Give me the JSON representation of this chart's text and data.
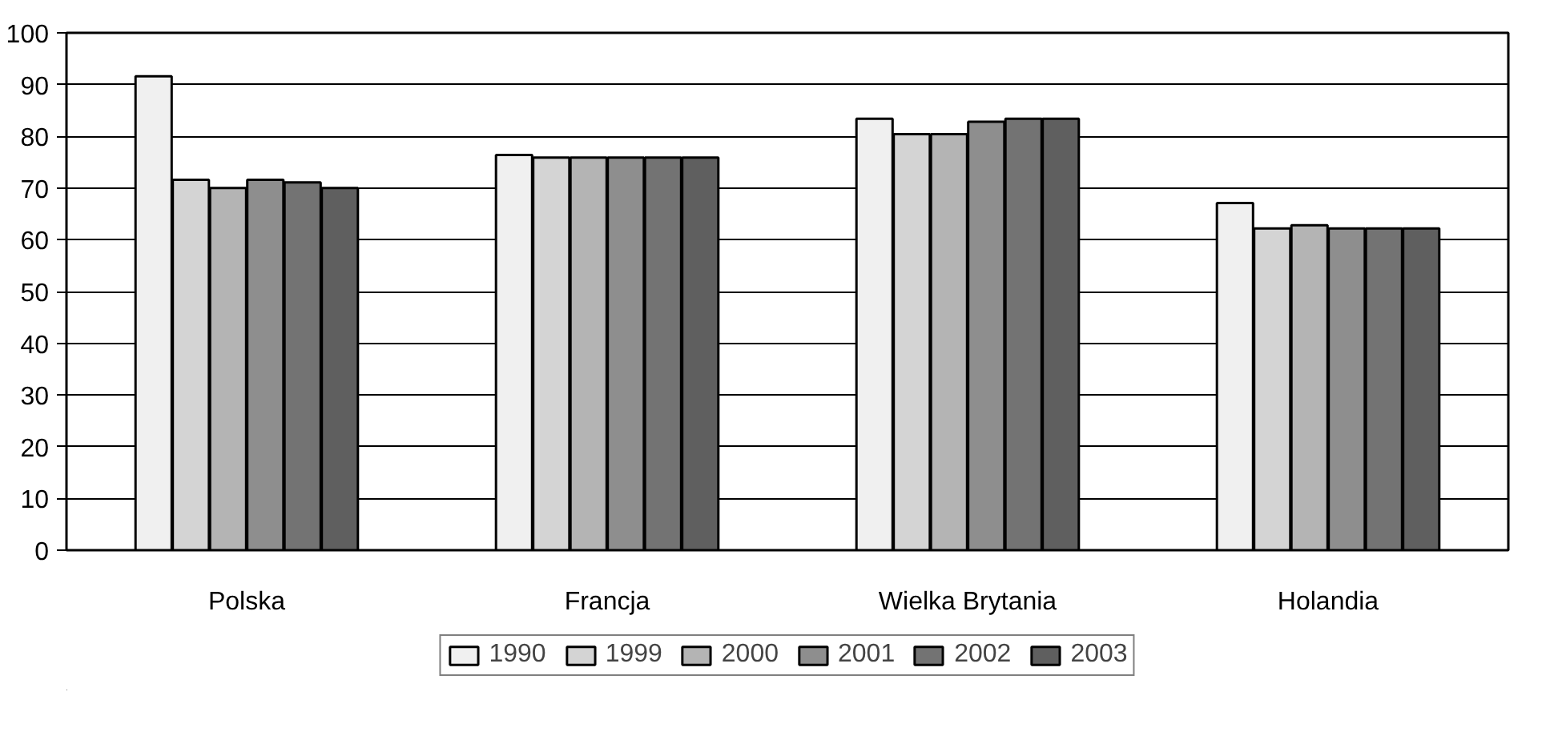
{
  "chart_data": {
    "type": "bar",
    "categories": [
      "Polska",
      "Francja",
      "Wielka Brytania",
      "Holandia"
    ],
    "series": [
      {
        "name": "1990",
        "color": "#f0f0f0",
        "values": [
          91.6,
          76.4,
          83.4,
          67.1
        ]
      },
      {
        "name": "1999",
        "color": "#d4d4d4",
        "values": [
          71.6,
          75.9,
          80.4,
          62.2
        ]
      },
      {
        "name": "2000",
        "color": "#b4b4b4",
        "values": [
          70.0,
          75.9,
          80.4,
          62.8
        ]
      },
      {
        "name": "2001",
        "color": "#8e8e8e",
        "values": [
          71.6,
          75.9,
          82.8,
          62.2
        ]
      },
      {
        "name": "2002",
        "color": "#737373",
        "values": [
          71.1,
          75.9,
          83.4,
          62.2
        ]
      },
      {
        "name": "2003",
        "color": "#5f5f5f",
        "values": [
          70.0,
          75.9,
          83.4,
          62.2
        ]
      }
    ],
    "ylim": [
      0,
      100
    ],
    "yticks": [
      0,
      10,
      20,
      30,
      40,
      50,
      60,
      70,
      80,
      90,
      100
    ],
    "grid": "y",
    "legend": "bottom"
  }
}
